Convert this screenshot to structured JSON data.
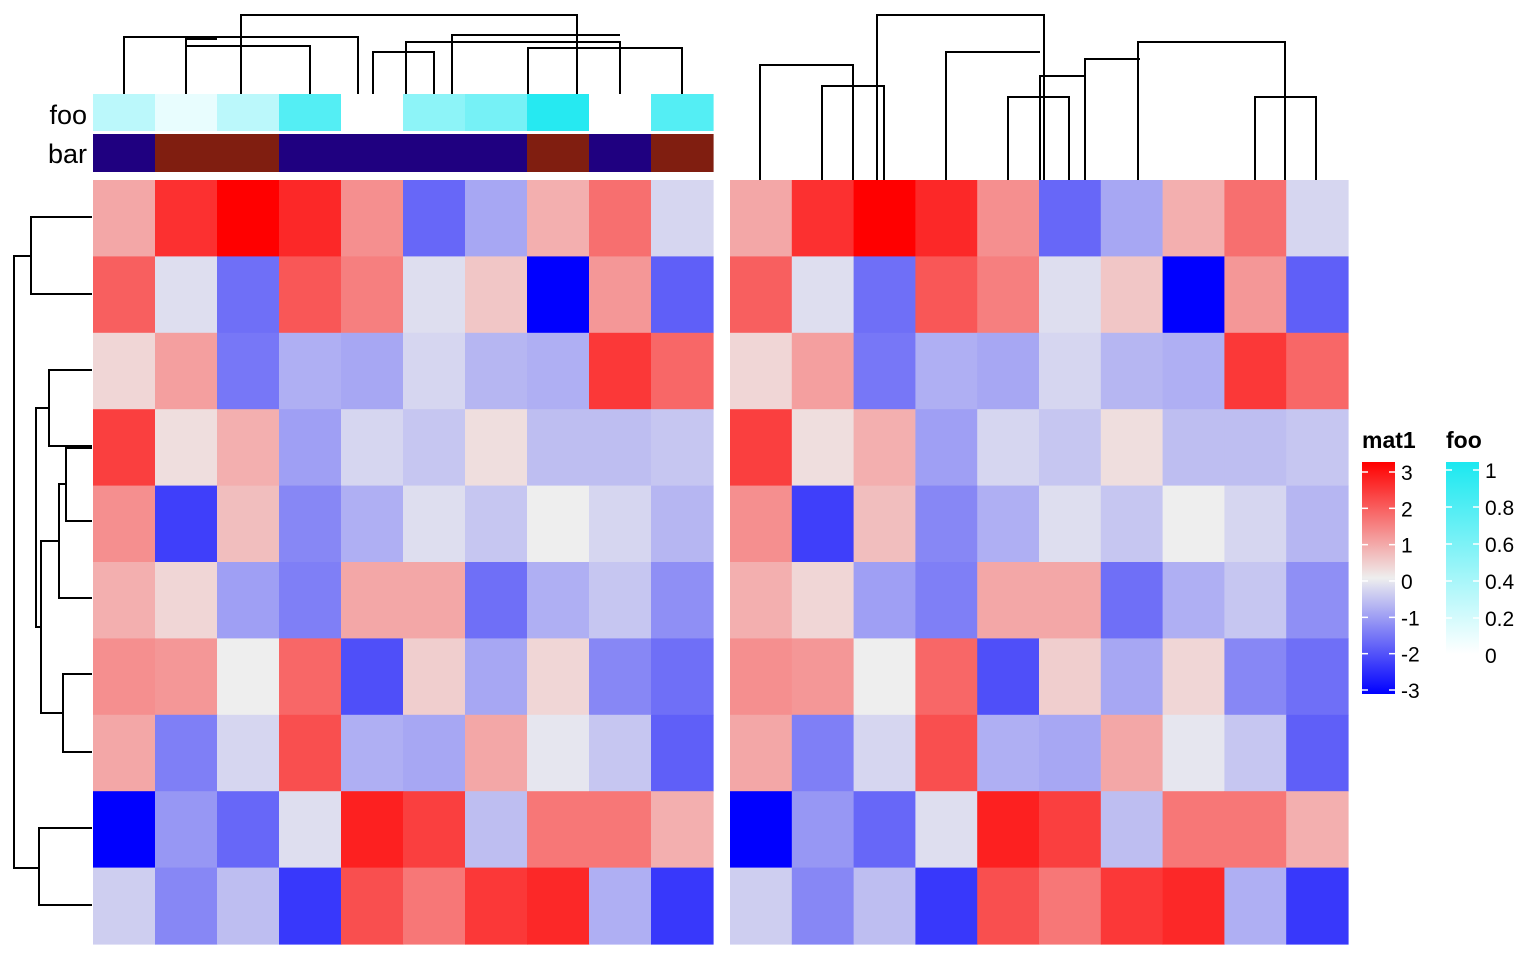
{
  "chart_data": {
    "type": "heatmap",
    "title": "",
    "row_count": 10,
    "column_count": 10,
    "heatmaps": [
      {
        "name": "mat1",
        "column_order": [
          1,
          2,
          3,
          4,
          5,
          6,
          7,
          8,
          9,
          10
        ],
        "show_annotations": true
      },
      {
        "name": "",
        "column_order": [
          1,
          2,
          3,
          4,
          5,
          6,
          7,
          8,
          9,
          10
        ],
        "show_annotations": false
      }
    ],
    "values": [
      [
        0.9,
        2.4,
        3.0,
        2.5,
        1.2,
        -1.7,
        -0.9,
        0.8,
        1.6,
        -0.3
      ],
      [
        1.8,
        -0.2,
        -1.6,
        1.9,
        1.4,
        -0.2,
        0.5,
        -3.0,
        1.1,
        -1.8
      ],
      [
        0.3,
        1.0,
        -1.5,
        -0.8,
        -0.9,
        -0.3,
        -0.7,
        -0.8,
        2.3,
        1.7
      ],
      [
        2.2,
        0.2,
        0.8,
        -1.0,
        -0.3,
        -0.5,
        0.2,
        -0.6,
        -0.6,
        -0.5
      ],
      [
        1.2,
        -2.2,
        0.6,
        -1.3,
        -0.8,
        -0.2,
        -0.5,
        0.0,
        -0.3,
        -0.7
      ],
      [
        0.8,
        0.3,
        -1.0,
        -1.4,
        0.9,
        0.9,
        -1.6,
        -0.8,
        -0.5,
        -1.2
      ],
      [
        1.2,
        1.1,
        0.0,
        1.7,
        -2.0,
        0.4,
        -0.9,
        0.3,
        -1.3,
        -1.6
      ],
      [
        0.9,
        -1.4,
        -0.3,
        2.0,
        -0.8,
        -0.9,
        0.9,
        -0.1,
        -0.5,
        -1.8
      ],
      [
        -3.0,
        -1.1,
        -1.7,
        -0.2,
        2.6,
        2.2,
        -0.6,
        1.5,
        1.5,
        0.8
      ],
      [
        -0.4,
        -1.3,
        -0.6,
        -2.3,
        2.0,
        1.5,
        2.3,
        2.5,
        -0.8,
        -2.3
      ]
    ],
    "column_annotations": {
      "foo": {
        "label": "foo",
        "values": [
          0.3,
          0.1,
          0.3,
          0.75,
          0.0,
          0.5,
          0.6,
          0.95,
          0.0,
          0.75
        ]
      },
      "bar": {
        "label": "bar",
        "values": [
          "a",
          "b",
          "b",
          "a",
          "a",
          "a",
          "a",
          "b",
          "a",
          "b"
        ],
        "colors": {
          "a": "#1f0080",
          "b": "#801e10"
        }
      }
    },
    "color_scale": {
      "mat1": {
        "stops": [
          [
            -3,
            "#0000ff"
          ],
          [
            0,
            "#eeeeee"
          ],
          [
            3,
            "#ff0000"
          ]
        ]
      },
      "foo": {
        "stops": [
          [
            0,
            "#ffffff"
          ],
          [
            1,
            "#1be8f0"
          ]
        ]
      }
    },
    "legends": [
      {
        "title": "mat1",
        "ticks": [
          "3",
          "2",
          "1",
          "0",
          "-1",
          "-2",
          "-3"
        ]
      },
      {
        "title": "foo",
        "ticks": [
          "1",
          "0.8",
          "0.6",
          "0.4",
          "0.2",
          "0"
        ]
      }
    ],
    "legend_placement": "right",
    "grid": false
  }
}
